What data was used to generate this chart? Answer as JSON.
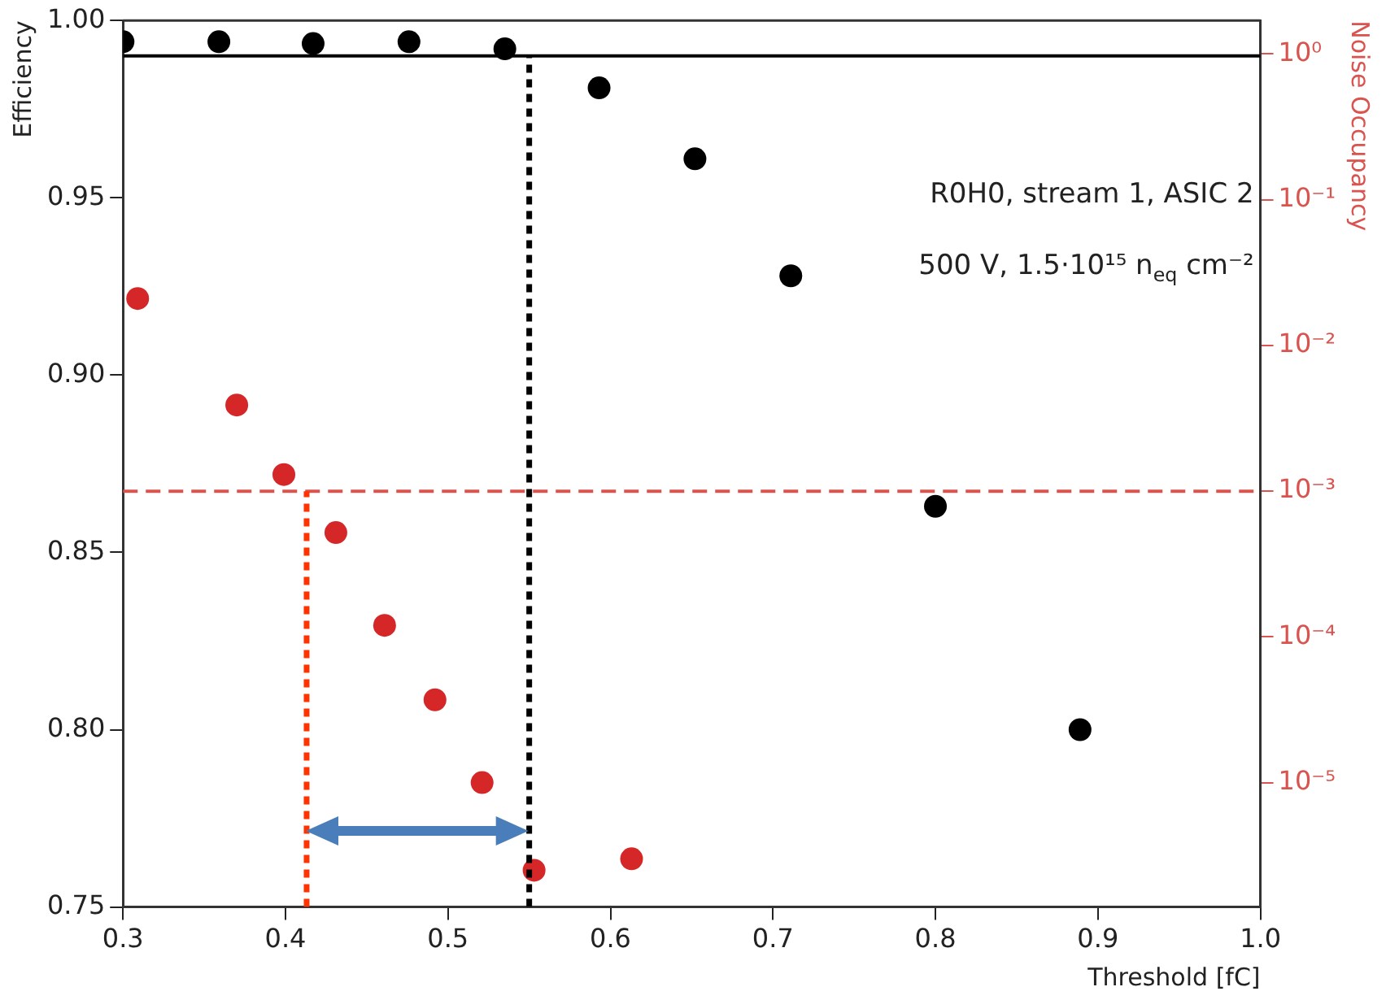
{
  "chart_data": {
    "type": "scatter",
    "xlabel": "Threshold [fC]",
    "ylabel": "Efficiency",
    "y2label": "Noise Occupancy",
    "annotations": [
      "R0H0, stream 1, ASIC 2",
      "500 V, 1.5·10¹⁵ n$_{eq}$ cm⁻²"
    ],
    "series": [
      {
        "color": "#000000",
        "x": [
          0.3,
          0.359,
          0.417,
          0.476,
          0.535,
          0.593,
          0.652,
          0.711,
          0.8,
          0.889
        ],
        "values": [
          0.994,
          0.994,
          0.9935,
          0.994,
          0.992,
          0.981,
          0.961,
          0.928,
          0.863,
          0.8
        ]
      },
      {
        "color": "#d62728",
        "axis": "y2",
        "x": [
          0.309,
          0.37,
          0.399,
          0.431,
          0.461,
          0.492,
          0.521,
          0.553,
          0.613
        ],
        "values": [
          0.021,
          0.0039,
          0.0013,
          0.00052,
          0.00012,
          3.7e-05,
          1e-05,
          2.5e-06,
          3e-06
        ]
      }
    ],
    "xlim": [
      0.3,
      1.0
    ],
    "xticks": [
      0.3,
      0.4,
      0.5,
      0.6,
      0.7,
      0.8,
      0.9,
      {
        "value": 1.0,
        "label": "1.0"
      }
    ],
    "ylim": [
      0.75,
      1.0
    ],
    "yticks": [
      {
        "value": 0.75,
        "label": "0.75"
      },
      {
        "value": 0.8,
        "label": "0.80"
      },
      {
        "value": 0.85,
        "label": "0.85"
      },
      {
        "value": 0.9,
        "label": "0.90"
      },
      {
        "value": 0.95,
        "label": "0.95"
      },
      {
        "value": 1.0,
        "label": "1.00"
      }
    ],
    "y2lim": [
      1.4e-06,
      1.7
    ],
    "y2ticks": [
      {
        "value": 1,
        "label": "10⁰"
      },
      {
        "value": 0.1,
        "label": "10⁻¹"
      },
      {
        "value": 0.01,
        "label": "10⁻²"
      },
      {
        "value": 0.001,
        "label": "10⁻³"
      },
      {
        "value": 0.0001,
        "label": "10⁻⁴"
      },
      {
        "value": 1e-05,
        "label": "10⁻⁵"
      }
    ],
    "log": "y2",
    "grid": false,
    "legend": false,
    "marker": "circle",
    "ref_lines": [
      {
        "axis": "y",
        "value": 0.99,
        "color": "#000000",
        "line_style": "solid"
      },
      {
        "axis": "x",
        "value": 0.55,
        "color": "#000000",
        "line_style": "dotted"
      },
      {
        "axis": "y2",
        "value": 0.001,
        "color": "#d9534f",
        "line_style": "dashed"
      },
      {
        "axis": "x",
        "value": 0.413,
        "color": "#ff3300",
        "line_style": "dotted"
      }
    ]
  }
}
